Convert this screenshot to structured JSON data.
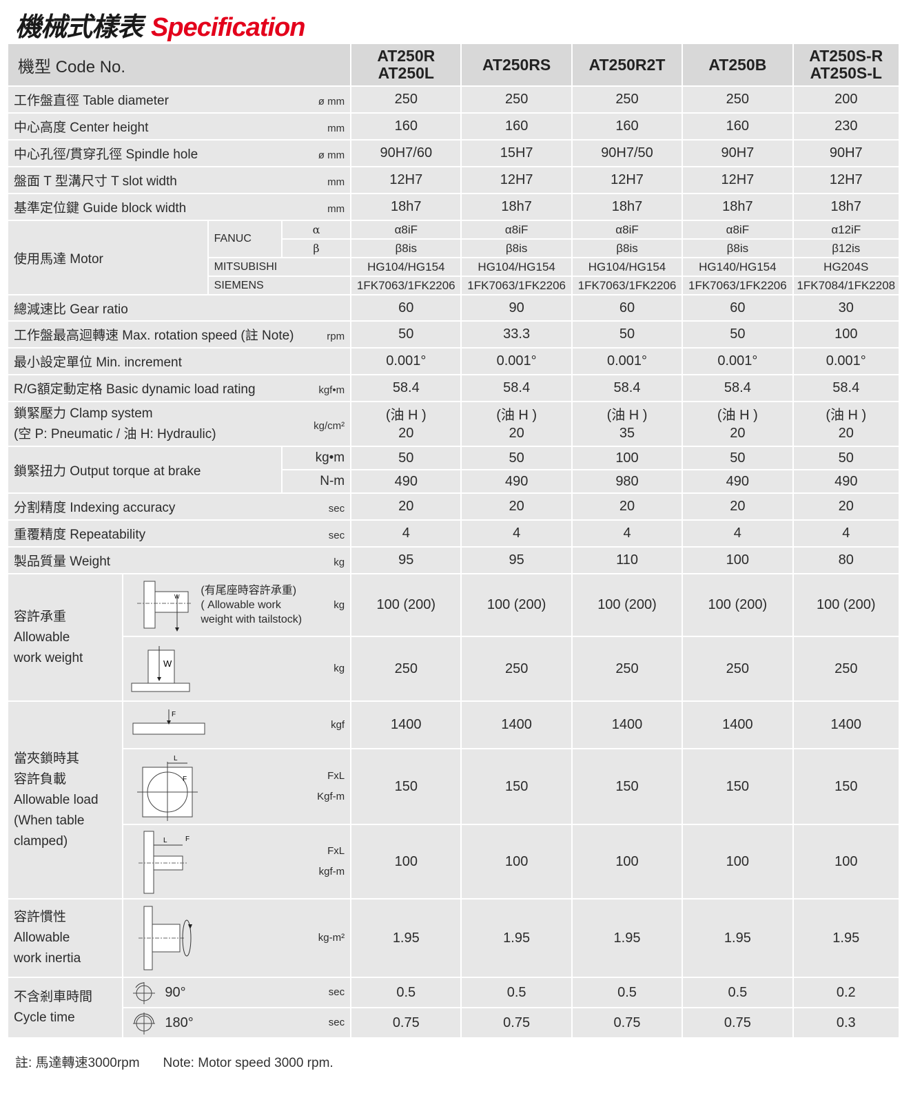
{
  "title": {
    "zh": "機械式樣表",
    "en": "Specification"
  },
  "header": {
    "label": "機型 Code No.",
    "models": [
      "AT250R\nAT250L",
      "AT250RS",
      "AT250R2T",
      "AT250B",
      "AT250S-R\nAT250S-L"
    ]
  },
  "rows": {
    "table_diameter": {
      "label": "工作盤直徑 Table diameter",
      "unit": "ø mm",
      "values": [
        "250",
        "250",
        "250",
        "250",
        "200"
      ]
    },
    "center_height": {
      "label": "中心高度 Center height",
      "unit": "mm",
      "values": [
        "160",
        "160",
        "160",
        "160",
        "230"
      ]
    },
    "spindle_hole": {
      "label": "中心孔徑/貫穿孔徑 Spindle hole",
      "unit": "ø mm",
      "values": [
        "90H7/60",
        "15H7",
        "90H7/50",
        "90H7",
        "90H7"
      ]
    },
    "t_slot": {
      "label": "盤面 T 型溝尺寸 T slot width",
      "unit": "mm",
      "values": [
        "12H7",
        "12H7",
        "12H7",
        "12H7",
        "12H7"
      ]
    },
    "guide_block": {
      "label": "基準定位鍵 Guide block width",
      "unit": "mm",
      "values": [
        "18h7",
        "18h7",
        "18h7",
        "18h7",
        "18h7"
      ]
    },
    "motor": {
      "label": "使用馬達 Motor",
      "fanuc": "FANUC",
      "alpha": "α",
      "beta": "β",
      "alpha_values": [
        "α8iF",
        "α8iF",
        "α8iF",
        "α8iF",
        "α12iF"
      ],
      "beta_values": [
        "β8is",
        "β8is",
        "β8is",
        "β8is",
        "β12is"
      ],
      "mitsubishi": "MITSUBISHI",
      "mitsubishi_values": [
        "HG104/HG154",
        "HG104/HG154",
        "HG104/HG154",
        "HG140/HG154",
        "HG204S"
      ],
      "siemens": "SIEMENS",
      "siemens_values": [
        "1FK7063/1FK2206",
        "1FK7063/1FK2206",
        "1FK7063/1FK2206",
        "1FK7063/1FK2206",
        "1FK7084/1FK2208"
      ]
    },
    "gear_ratio": {
      "label": "總減速比 Gear ratio",
      "unit": "",
      "values": [
        "60",
        "90",
        "60",
        "60",
        "30"
      ]
    },
    "max_speed": {
      "label": "工作盤最高迴轉速 Max. rotation speed (註 Note)",
      "unit": "rpm",
      "values": [
        "50",
        "33.3",
        "50",
        "50",
        "100"
      ]
    },
    "min_increment": {
      "label": "最小設定單位 Min. increment",
      "unit": "",
      "values": [
        "0.001°",
        "0.001°",
        "0.001°",
        "0.001°",
        "0.001°"
      ]
    },
    "load_rating": {
      "label": "R/G額定動定格 Basic dynamic load rating",
      "unit": "kgf•m",
      "values": [
        "58.4",
        "58.4",
        "58.4",
        "58.4",
        "58.4"
      ]
    },
    "clamp": {
      "label": "鎖緊壓力  Clamp system\n(空 P: Pneumatic / 油 H: Hydraulic)",
      "unit": "kg/cm²",
      "values": [
        "(油 H )\n20",
        "(油 H )\n20",
        "(油 H )\n35",
        "(油 H )\n20",
        "(油 H )\n20"
      ]
    },
    "torque": {
      "label": "鎖緊扭力 Output torque at brake",
      "unit_kgm": "kg•m",
      "values_kgm": [
        "50",
        "50",
        "100",
        "50",
        "50"
      ],
      "unit_nm": "N-m",
      "values_nm": [
        "490",
        "490",
        "980",
        "490",
        "490"
      ]
    },
    "indexing": {
      "label": "分割精度 Indexing accuracy",
      "unit": "sec",
      "values": [
        "20",
        "20",
        "20",
        "20",
        "20"
      ]
    },
    "repeatability": {
      "label": "重覆精度 Repeatability",
      "unit": "sec",
      "values": [
        "4",
        "4",
        "4",
        "4",
        "4"
      ]
    },
    "weight": {
      "label": "製品質量 Weight",
      "unit": "kg",
      "values": [
        "95",
        "95",
        "110",
        "100",
        "80"
      ]
    },
    "work_weight": {
      "label": "容許承重\nAllowable\nwork weight",
      "diagram_w": "W",
      "tailstock_note": "(有尾座時容許承重)\n( Allowable work\n weight with tailstock)",
      "tailstock_unit": "kg",
      "tailstock_values": [
        "100 (200)",
        "100 (200)",
        "100 (200)",
        "100 (200)",
        "100 (200)"
      ],
      "vertical_unit": "kg",
      "vertical_values": [
        "250",
        "250",
        "250",
        "250",
        "250"
      ]
    },
    "clamp_load": {
      "label": "當夾鎖時其\n容許負載\nAllowable load\n(When table\nclamped)",
      "diagram_f": "F",
      "diagram_l": "L",
      "thrust_unit": "kgf",
      "thrust_values": [
        "1400",
        "1400",
        "1400",
        "1400",
        "1400"
      ],
      "tangential_unit": "FxL\nKgf-m",
      "tangential_values": [
        "150",
        "150",
        "150",
        "150",
        "150"
      ],
      "moment_unit": "FxL\nkgf-m",
      "moment_values": [
        "100",
        "100",
        "100",
        "100",
        "100"
      ]
    },
    "inertia": {
      "label": "容許慣性\nAllowable\nwork inertia",
      "unit": "kg-m²",
      "values": [
        "1.95",
        "1.95",
        "1.95",
        "1.95",
        "1.95"
      ]
    },
    "cycle_time": {
      "label": "不含剎車時間\nCycle time",
      "angle_90": "90°",
      "unit_90": "sec",
      "values_90": [
        "0.5",
        "0.5",
        "0.5",
        "0.5",
        "0.2"
      ],
      "angle_180": "180°",
      "unit_180": "sec",
      "values_180": [
        "0.75",
        "0.75",
        "0.75",
        "0.75",
        "0.3"
      ]
    }
  },
  "footnote": {
    "zh": "註: 馬達轉速3000rpm",
    "en": "Note: Motor speed 3000 rpm."
  },
  "colors": {
    "title_accent": "#e3001b",
    "cell_bg": "#e7e7e7",
    "header_bg": "#d8d8d8"
  }
}
